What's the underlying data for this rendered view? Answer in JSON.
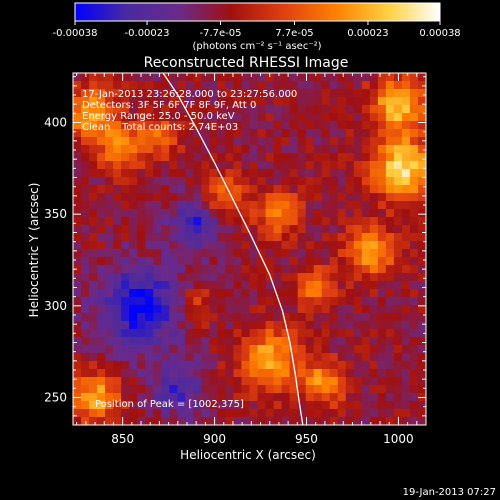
{
  "chart_data": {
    "type": "heatmap",
    "title": "Reconstructed RHESSI Image",
    "xlabel": "Heliocentric X (arcsec)",
    "ylabel": "Heliocentric Y (arcsec)",
    "xlim": [
      823,
      1015
    ],
    "ylim": [
      235,
      427
    ],
    "xticks": [
      850,
      900,
      950,
      1000
    ],
    "yticks": [
      250,
      300,
      350,
      400
    ],
    "colorbar": {
      "min": -0.00038,
      "max": 0.00038,
      "ticks": [
        "-0.00038",
        "-0.00023",
        "-7.7e-05",
        "7.7e-05",
        "0.00023",
        "0.00038"
      ],
      "tick_values": [
        -0.00038,
        -0.00023,
        -7.7e-05,
        7.7e-05,
        0.00023,
        0.00038
      ],
      "units": "(photons cm⁻² s⁻¹ asec⁻²)",
      "colors": [
        "#0000ff",
        "#4a2aa0",
        "#6a2a8a",
        "#a01010",
        "#e04010",
        "#ff8000",
        "#ffd040",
        "#ffffff"
      ]
    },
    "annotations": {
      "time_range": "17-Jan-2013 23:26:28.000 to 23:27:56.000",
      "detectors": "Detectors: 3F 5F 6F 7F 8F 9F, Att 0",
      "energy_range": "Energy Range: 25.0 - 50.0 keV",
      "clean": "Clean",
      "total_counts": "Total counts: 2.74E+03",
      "peak": "Position of Peak = [1002,375]"
    },
    "peak": {
      "x": 1002,
      "y": 375
    },
    "limb_curve": [
      [
        872,
        427
      ],
      [
        880,
        415
      ],
      [
        890,
        397
      ],
      [
        900,
        378
      ],
      [
        910,
        358
      ],
      [
        920,
        338
      ],
      [
        930,
        317
      ],
      [
        937,
        297
      ],
      [
        941,
        280
      ],
      [
        944,
        262
      ],
      [
        946,
        248
      ],
      [
        948,
        235
      ]
    ],
    "hot_regions": [
      {
        "x": 833,
        "y": 405,
        "r": 12,
        "v": 0.0003
      },
      {
        "x": 850,
        "y": 385,
        "r": 10,
        "v": 0.00025
      },
      {
        "x": 870,
        "y": 392,
        "r": 9,
        "v": 0.0002
      },
      {
        "x": 905,
        "y": 360,
        "r": 10,
        "v": 0.00022
      },
      {
        "x": 935,
        "y": 350,
        "r": 10,
        "v": 0.00024
      },
      {
        "x": 1002,
        "y": 375,
        "r": 14,
        "v": 0.00038
      },
      {
        "x": 1000,
        "y": 410,
        "r": 12,
        "v": 0.00034
      },
      {
        "x": 985,
        "y": 330,
        "r": 11,
        "v": 0.0003
      },
      {
        "x": 955,
        "y": 310,
        "r": 9,
        "v": 0.00022
      },
      {
        "x": 930,
        "y": 270,
        "r": 14,
        "v": 0.0003
      },
      {
        "x": 960,
        "y": 258,
        "r": 10,
        "v": 0.00026
      },
      {
        "x": 835,
        "y": 250,
        "r": 11,
        "v": 0.0003
      },
      {
        "x": 890,
        "y": 300,
        "r": 8,
        "v": 0.00015
      }
    ],
    "cold_regions": [
      {
        "x": 860,
        "y": 300,
        "r": 18,
        "v": -0.0003
      },
      {
        "x": 890,
        "y": 345,
        "r": 12,
        "v": -0.00022
      },
      {
        "x": 880,
        "y": 255,
        "r": 12,
        "v": -0.0002
      }
    ]
  },
  "footer": {
    "date": "19-Jan-2013 07:27"
  }
}
